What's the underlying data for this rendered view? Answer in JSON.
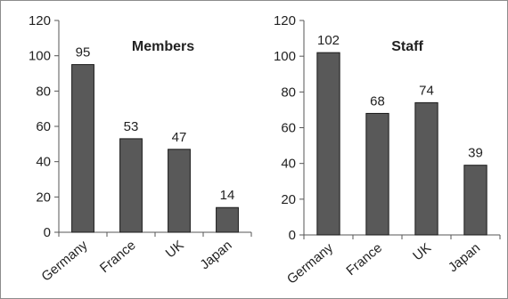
{
  "chart_data": [
    {
      "type": "bar",
      "title": "Members",
      "categories": [
        "Germany",
        "France",
        "UK",
        "Japan"
      ],
      "values": [
        95,
        53,
        47,
        14
      ],
      "ylim": [
        0,
        120
      ],
      "yticks": [
        0,
        20,
        40,
        60,
        80,
        100,
        120
      ],
      "bar_color": "#595959",
      "grid": false,
      "xlabel": "",
      "ylabel": ""
    },
    {
      "type": "bar",
      "title": "Staff",
      "categories": [
        "Germany",
        "France",
        "UK",
        "Japan"
      ],
      "values": [
        102,
        68,
        74,
        39
      ],
      "ylim": [
        0,
        120
      ],
      "yticks": [
        0,
        20,
        40,
        60,
        80,
        100,
        120
      ],
      "bar_color": "#595959",
      "grid": false,
      "xlabel": "",
      "ylabel": ""
    }
  ]
}
